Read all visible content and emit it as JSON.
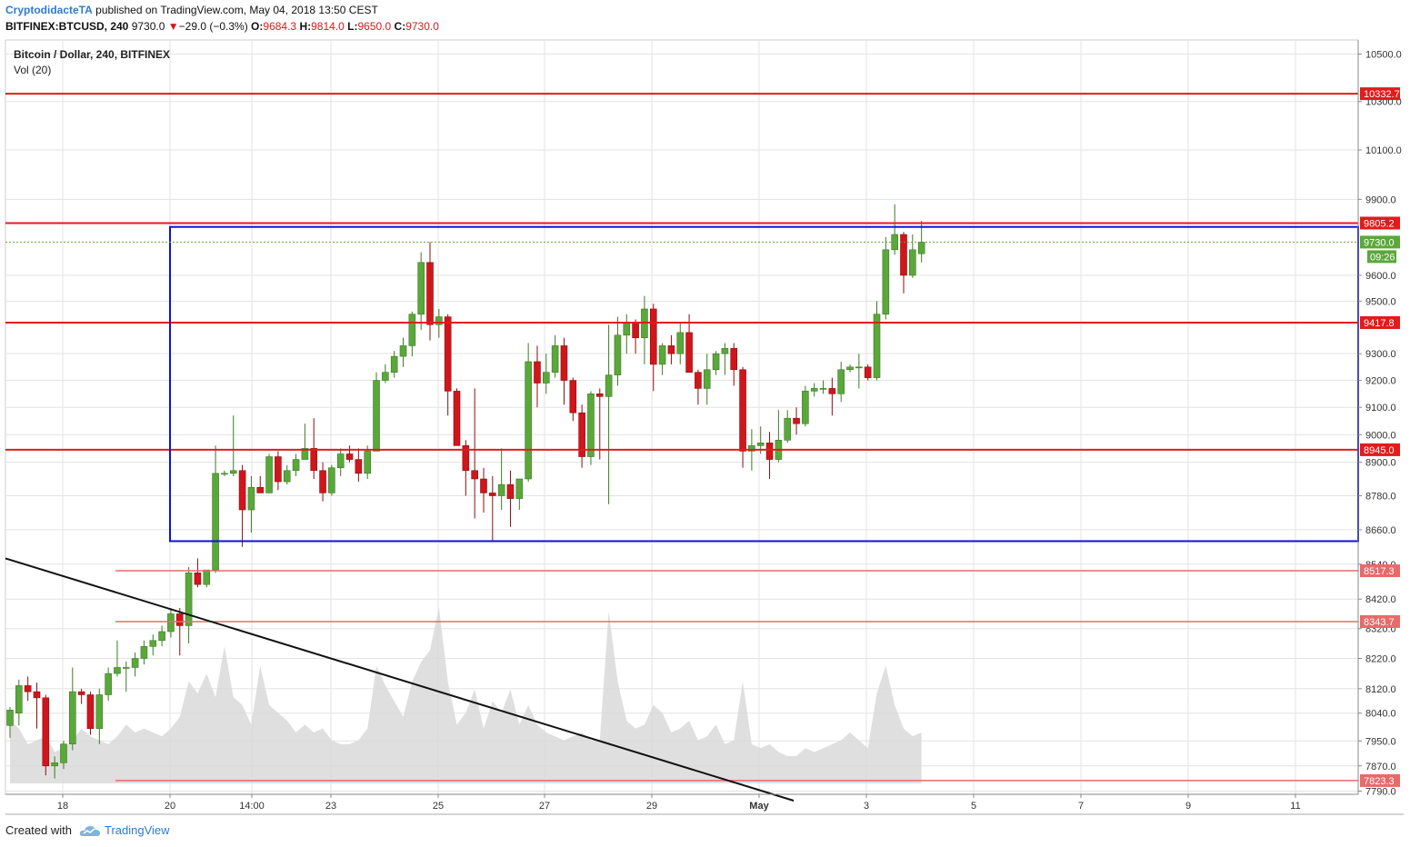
{
  "header": {
    "author": "CryptodidacteTA",
    "published": "published on TradingView.com, May 04, 2018 13:50 CEST",
    "symbol": "BITFINEX:BTCUSD, 240",
    "last": "9730.0",
    "change": "−29.0 (−0.3%)",
    "o_label": "O:",
    "o_value": "9684.3",
    "h_label": "H:",
    "h_value": "9814.0",
    "l_label": "L:",
    "l_value": "9650.0",
    "c_label": "C:",
    "c_value": "9730.0"
  },
  "legend": {
    "title": "Bitcoin / Dollar, 240, BITFINEX",
    "volume": "Vol (20)"
  },
  "footer": {
    "created_with": "Created with",
    "brand": "TradingView"
  },
  "colors": {
    "up": "#5aa83a",
    "down": "#d0161b",
    "level": "#e21b1b",
    "box": "#1111d6",
    "trend": "#111111",
    "volume": "#d9d9d9",
    "grid": "#e3e3e3"
  },
  "chart_data": {
    "type": "candlestick",
    "y_axis": {
      "ticks": [
        "10500.0",
        "10300.0",
        "10100.0",
        "9900.0",
        "9600.0",
        "9500.0",
        "9300.0",
        "9200.0",
        "9100.0",
        "9000.0",
        "8900.0",
        "8780.0",
        "8660.0",
        "8540.0",
        "8420.0",
        "8320.0",
        "8220.0",
        "8120.0",
        "8040.0",
        "7950.0",
        "7870.0",
        "7790.0"
      ],
      "scale": "log",
      "range": [
        7780,
        10560
      ]
    },
    "x_axis": {
      "ticks": [
        {
          "label": "18",
          "bold": false
        },
        {
          "label": "20",
          "bold": false
        },
        {
          "label": "14:00",
          "bold": false
        },
        {
          "label": "23",
          "bold": false
        },
        {
          "label": "25",
          "bold": false
        },
        {
          "label": "27",
          "bold": false
        },
        {
          "label": "29",
          "bold": false
        },
        {
          "label": "May",
          "bold": true
        },
        {
          "label": "3",
          "bold": false
        },
        {
          "label": "5",
          "bold": false
        },
        {
          "label": "7",
          "bold": false
        },
        {
          "label": "9",
          "bold": false
        },
        {
          "label": "11",
          "bold": false
        }
      ]
    },
    "levels": [
      {
        "price": 10332.7,
        "label": "10332.7",
        "strong": true
      },
      {
        "price": 9805.2,
        "label": "9805.2",
        "strong": true
      },
      {
        "price": 9417.8,
        "label": "9417.8",
        "strong": true
      },
      {
        "price": 8945.0,
        "label": "8945.0",
        "strong": true
      },
      {
        "price": 8517.3,
        "label": "8517.3",
        "strong": false
      },
      {
        "price": 8343.7,
        "label": "8343.7",
        "strong": false
      },
      {
        "price": 7823.3,
        "label": "7823.3",
        "strong": false
      }
    ],
    "current_price": {
      "label": "9730.0",
      "countdown": "09:26",
      "price": 9730
    },
    "range_box": {
      "top": 9790,
      "bottom": 8620
    },
    "trendline": {
      "from": 8560,
      "to": 7760
    },
    "candles": [
      [
        8000,
        8060,
        7960,
        8050
      ],
      [
        8040,
        8150,
        8000,
        8130
      ],
      [
        8130,
        8160,
        8080,
        8110
      ],
      [
        8110,
        8140,
        7990,
        8090
      ],
      [
        8090,
        8100,
        7840,
        7870
      ],
      [
        7870,
        7900,
        7830,
        7880
      ],
      [
        7880,
        7950,
        7860,
        7940
      ],
      [
        7940,
        8190,
        7920,
        8110
      ],
      [
        8110,
        8120,
        8070,
        8100
      ],
      [
        8100,
        8110,
        7970,
        7990
      ],
      [
        7990,
        8120,
        7940,
        8100
      ],
      [
        8100,
        8190,
        8080,
        8170
      ],
      [
        8170,
        8280,
        8160,
        8190
      ],
      [
        8190,
        8210,
        8110,
        8190
      ],
      [
        8190,
        8240,
        8160,
        8220
      ],
      [
        8220,
        8280,
        8200,
        8260
      ],
      [
        8260,
        8300,
        8230,
        8280
      ],
      [
        8280,
        8330,
        8260,
        8310
      ],
      [
        8310,
        8390,
        8290,
        8370
      ],
      [
        8370,
        8390,
        8230,
        8330
      ],
      [
        8330,
        8530,
        8270,
        8510
      ],
      [
        8510,
        8560,
        8460,
        8470
      ],
      [
        8470,
        8520,
        8460,
        8520
      ],
      [
        8520,
        8960,
        8510,
        8860
      ],
      [
        8860,
        8870,
        8850,
        8860
      ],
      [
        8860,
        9070,
        8850,
        8870
      ],
      [
        8870,
        8890,
        8600,
        8730
      ],
      [
        8730,
        8850,
        8650,
        8810
      ],
      [
        8810,
        8850,
        8790,
        8790
      ],
      [
        8790,
        8930,
        8790,
        8920
      ],
      [
        8920,
        8940,
        8800,
        8830
      ],
      [
        8830,
        8890,
        8820,
        8870
      ],
      [
        8870,
        8930,
        8850,
        8910
      ],
      [
        8910,
        9040,
        8930,
        8950
      ],
      [
        8950,
        9060,
        8840,
        8870
      ],
      [
        8870,
        8900,
        8760,
        8790
      ],
      [
        8790,
        8890,
        8780,
        8880
      ],
      [
        8880,
        8950,
        8850,
        8930
      ],
      [
        8930,
        8960,
        8900,
        8910
      ],
      [
        8910,
        8950,
        8830,
        8860
      ],
      [
        8860,
        8960,
        8840,
        8940
      ],
      [
        8940,
        9230,
        8940,
        9200
      ],
      [
        9200,
        9260,
        9190,
        9230
      ],
      [
        9230,
        9310,
        9210,
        9290
      ],
      [
        9290,
        9360,
        9250,
        9330
      ],
      [
        9330,
        9460,
        9290,
        9450
      ],
      [
        9450,
        9690,
        9390,
        9650
      ],
      [
        9650,
        9730,
        9350,
        9410
      ],
      [
        9410,
        9470,
        9360,
        9440
      ],
      [
        9440,
        9450,
        9070,
        9160
      ],
      [
        9160,
        9170,
        8960,
        8960
      ],
      [
        8960,
        8980,
        8780,
        8870
      ],
      [
        8870,
        9170,
        8700,
        8840
      ],
      [
        8840,
        8880,
        8720,
        8790
      ],
      [
        8790,
        8850,
        8620,
        8780
      ],
      [
        8780,
        8950,
        8730,
        8820
      ],
      [
        8820,
        8870,
        8670,
        8770
      ],
      [
        8770,
        8840,
        8730,
        8840
      ],
      [
        8840,
        9340,
        8830,
        9270
      ],
      [
        9270,
        9330,
        9100,
        9190
      ],
      [
        9190,
        9300,
        9150,
        9230
      ],
      [
        9230,
        9370,
        9210,
        9330
      ],
      [
        9330,
        9360,
        9110,
        9200
      ],
      [
        9200,
        9210,
        9050,
        9080
      ],
      [
        9080,
        9110,
        8880,
        8920
      ],
      [
        8920,
        9160,
        8890,
        9150
      ],
      [
        9150,
        9170,
        8910,
        9140
      ],
      [
        9140,
        9410,
        8750,
        9220
      ],
      [
        9220,
        9440,
        9180,
        9370
      ],
      [
        9370,
        9450,
        9300,
        9420
      ],
      [
        9420,
        9430,
        9300,
        9360
      ],
      [
        9360,
        9520,
        9260,
        9470
      ],
      [
        9470,
        9490,
        9160,
        9260
      ],
      [
        9260,
        9340,
        9220,
        9330
      ],
      [
        9330,
        9370,
        9260,
        9300
      ],
      [
        9300,
        9420,
        9260,
        9380
      ],
      [
        9380,
        9450,
        9230,
        9230
      ],
      [
        9230,
        9240,
        9110,
        9170
      ],
      [
        9170,
        9300,
        9110,
        9240
      ],
      [
        9240,
        9310,
        9220,
        9300
      ],
      [
        9300,
        9340,
        9220,
        9320
      ],
      [
        9320,
        9340,
        9180,
        9240
      ],
      [
        9240,
        9250,
        8880,
        8940
      ],
      [
        8940,
        9020,
        8870,
        8960
      ],
      [
        8960,
        9030,
        8930,
        8970
      ],
      [
        8970,
        9010,
        8840,
        8910
      ],
      [
        8910,
        9090,
        8900,
        8980
      ],
      [
        8980,
        9090,
        8970,
        9060
      ],
      [
        9060,
        9100,
        9000,
        9040
      ],
      [
        9040,
        9180,
        9030,
        9160
      ],
      [
        9160,
        9190,
        9140,
        9170
      ],
      [
        9170,
        9200,
        9150,
        9170
      ],
      [
        9170,
        9210,
        9070,
        9150
      ],
      [
        9150,
        9270,
        9120,
        9240
      ],
      [
        9240,
        9260,
        9230,
        9250
      ],
      [
        9250,
        9300,
        9170,
        9250
      ],
      [
        9250,
        9260,
        9200,
        9210
      ],
      [
        9210,
        9500,
        9200,
        9450
      ],
      [
        9450,
        9750,
        9430,
        9700
      ],
      [
        9700,
        9880,
        9680,
        9760
      ],
      [
        9760,
        9770,
        9530,
        9600
      ],
      [
        9600,
        9760,
        9590,
        9700
      ],
      [
        9684.3,
        9814,
        9650,
        9730
      ]
    ],
    "volume": [
      16,
      14,
      10,
      11,
      12,
      8,
      9,
      11,
      14,
      12,
      11,
      10,
      12,
      15,
      13,
      14,
      13,
      12,
      14,
      17,
      26,
      23,
      28,
      22,
      35,
      22,
      20,
      15,
      30,
      20,
      18,
      16,
      13,
      15,
      13,
      14,
      11,
      10,
      10,
      11,
      14,
      30,
      25,
      21,
      17,
      26,
      31,
      34,
      45,
      26,
      15,
      18,
      24,
      14,
      21,
      18,
      24,
      15,
      20,
      15,
      13,
      12,
      11,
      12,
      13,
      11,
      11,
      44,
      26,
      16,
      14,
      15,
      20,
      18,
      13,
      14,
      16,
      11,
      12,
      15,
      10,
      11,
      26,
      10,
      9,
      10,
      8,
      7,
      7,
      9,
      8,
      9,
      10,
      11,
      13,
      11,
      9,
      23,
      30,
      20,
      14,
      12,
      13
    ]
  }
}
